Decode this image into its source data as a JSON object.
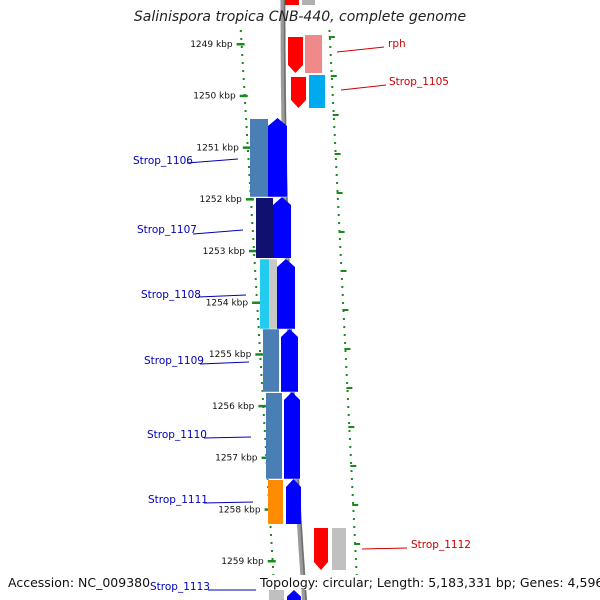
{
  "title": "Salinispora tropica CNB-440, complete genome",
  "footer": {
    "accession": "Accession: NC_009380",
    "topology": "Topology: circular; Length: 5,183,331 bp; Genes: 4,596"
  },
  "colors": {
    "backbone": "#8c8c8c",
    "tick": "#1a8a1a",
    "forward_label": "#cc0000",
    "reverse_label": "#0000bb",
    "blue_strand": "#0000ff"
  },
  "kbp_ticks": [
    "1249 kbp",
    "1250 kbp",
    "1251 kbp",
    "1252 kbp",
    "1253 kbp",
    "1254 kbp",
    "1255 kbp",
    "1256 kbp",
    "1257 kbp",
    "1258 kbp",
    "1259 kbp"
  ],
  "genes": [
    {
      "label": "rph",
      "strand": "forward",
      "cog_color": "#f08a8a"
    },
    {
      "label": "Strop_1105",
      "strand": "forward",
      "cog_color": "#00aaee"
    },
    {
      "label": "Strop_1106",
      "strand": "reverse",
      "cog_color": "#4a7fb5"
    },
    {
      "label": "Strop_1107",
      "strand": "reverse",
      "cog_color": "#101070"
    },
    {
      "label": "Strop_1108",
      "strand": "reverse",
      "cog_color": "#22ccee"
    },
    {
      "label": "Strop_1109",
      "strand": "reverse",
      "cog_color": "#4a7fb5"
    },
    {
      "label": "Strop_1110",
      "strand": "reverse",
      "cog_color": "#4a7fb5"
    },
    {
      "label": "Strop_1111",
      "strand": "reverse",
      "cog_color": "#ff8c00"
    },
    {
      "label": "Strop_1112",
      "strand": "forward",
      "cog_color": "#c0c0c0"
    },
    {
      "label": "Strop_1113",
      "strand": "reverse",
      "cog_color": "#c0c0c0"
    }
  ]
}
